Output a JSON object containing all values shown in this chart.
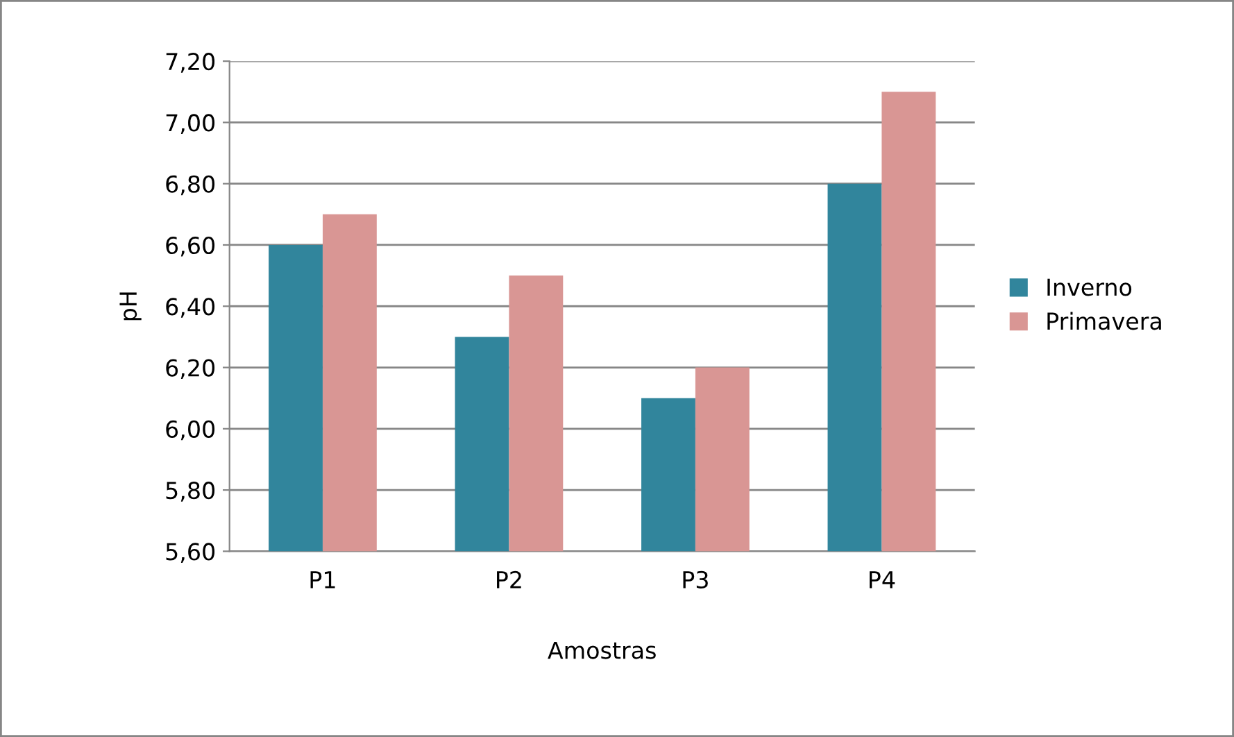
{
  "chart_data": {
    "type": "bar",
    "xlabel": "Amostras",
    "ylabel": "pH",
    "categories": [
      "P1",
      "P2",
      "P3",
      "P4"
    ],
    "series": [
      {
        "name": "Inverno",
        "color": "#31859c",
        "values": [
          6.6,
          6.3,
          6.1,
          6.8
        ]
      },
      {
        "name": "Primavera",
        "color": "#d99694",
        "values": [
          6.7,
          6.5,
          6.2,
          7.1
        ]
      }
    ],
    "ylim": [
      5.6,
      7.2
    ],
    "yticks": [
      {
        "value": 5.6,
        "label": "5,60"
      },
      {
        "value": 5.8,
        "label": "5,80"
      },
      {
        "value": 6.0,
        "label": "6,00"
      },
      {
        "value": 6.2,
        "label": "6,20"
      },
      {
        "value": 6.4,
        "label": "6,40"
      },
      {
        "value": 6.6,
        "label": "6,60"
      },
      {
        "value": 6.8,
        "label": "6,80"
      },
      {
        "value": 7.0,
        "label": "7,00"
      },
      {
        "value": 7.2,
        "label": "7,20"
      }
    ],
    "grid": "y",
    "legend": "right"
  }
}
